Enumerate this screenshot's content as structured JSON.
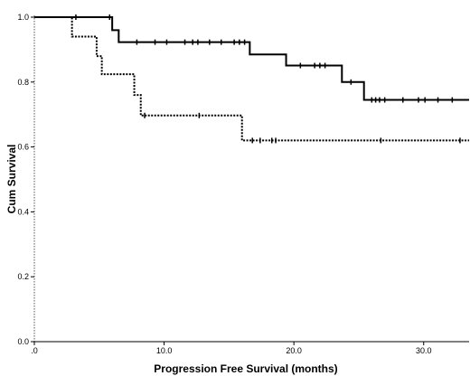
{
  "chart_data": {
    "type": "line",
    "step": true,
    "xlabel": "Progression Free Survival (months)",
    "ylabel": "Cum Survival",
    "xlim": [
      0,
      33.5
    ],
    "ylim": [
      0,
      1.0
    ],
    "x_ticks": [
      {
        "value": 0,
        "label": ".0"
      },
      {
        "value": 10,
        "label": "10.0"
      },
      {
        "value": 20,
        "label": "20.0"
      },
      {
        "value": 30,
        "label": "30.0"
      }
    ],
    "y_ticks": [
      {
        "value": 0,
        "label": "0.0"
      },
      {
        "value": 0.2,
        "label": "0.2"
      },
      {
        "value": 0.4,
        "label": "0.4"
      },
      {
        "value": 0.6,
        "label": "0.6"
      },
      {
        "value": 0.8,
        "label": "0.8"
      },
      {
        "value": 1.0,
        "label": "1.0"
      }
    ],
    "grid": false,
    "legend": "none",
    "series": [
      {
        "style": "solid",
        "color": "#000000",
        "steps": [
          [
            0,
            1.0
          ],
          [
            6.0,
            0.96
          ],
          [
            6.5,
            0.923
          ],
          [
            16.6,
            0.885
          ],
          [
            19.4,
            0.851
          ],
          [
            23.7,
            0.8
          ],
          [
            25.4,
            0.745
          ],
          [
            33.5,
            0.745
          ]
        ],
        "censored": [
          3.2,
          5.8,
          7.9,
          9.3,
          10.2,
          11.6,
          12.2,
          12.6,
          13.5,
          14.4,
          15.4,
          15.8,
          16.2,
          20.5,
          21.6,
          22.0,
          22.4,
          24.4,
          26.0,
          26.3,
          26.6,
          27.0,
          28.4,
          29.6,
          30.1,
          31.1,
          32.2
        ]
      },
      {
        "style": "dotted",
        "color": "#000000",
        "steps": [
          [
            0,
            1.0
          ],
          [
            2.9,
            0.94
          ],
          [
            4.8,
            0.88
          ],
          [
            5.2,
            0.824
          ],
          [
            7.7,
            0.76
          ],
          [
            8.2,
            0.697
          ],
          [
            16.0,
            0.62
          ],
          [
            33.5,
            0.62
          ]
        ],
        "censored": [
          8.5,
          12.7,
          16.8,
          17.4,
          18.3,
          18.6,
          26.7,
          32.8
        ]
      }
    ]
  }
}
